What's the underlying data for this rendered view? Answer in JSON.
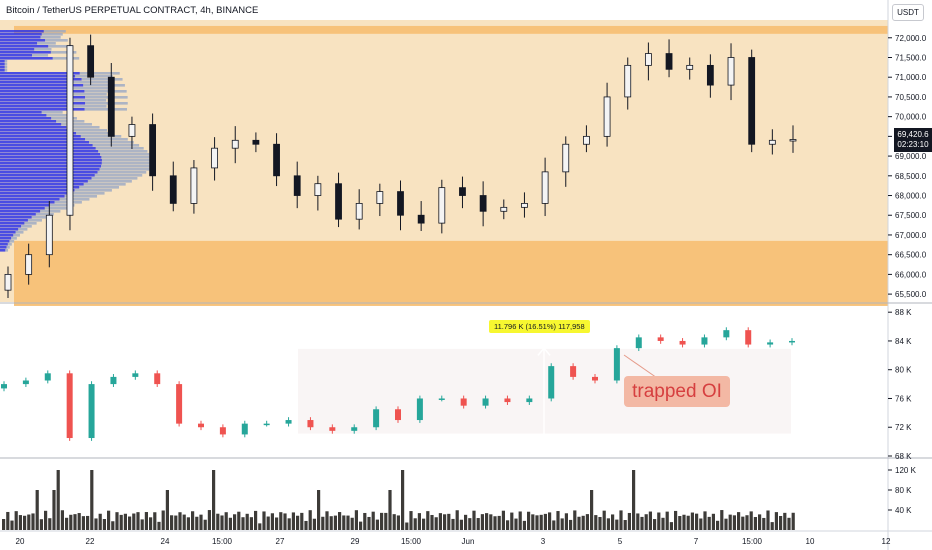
{
  "header": {
    "title": "Bitcoin / TetherUS PERPETUAL CONTRACT, 4h, BINANCE",
    "currency": "USDT"
  },
  "price_panel": {
    "y_ticks": [
      "72,000.0",
      "71,500.0",
      "71,000.0",
      "70,500.0",
      "70,000.0",
      "69,500.0",
      "69,000.0",
      "68,500.0",
      "68,000.0",
      "67,500.0",
      "67,000.0",
      "66,500.0",
      "66,000.0",
      "65,500.0"
    ],
    "last_price": "69,420.6",
    "countdown": "02:23:10",
    "zone_colors": {
      "resistance": "#f7c27a",
      "support": "#f7c27a",
      "background": "#f8e3c1"
    }
  },
  "oi_panel": {
    "y_ticks": [
      "88 K",
      "84 K",
      "80 K",
      "76 K",
      "72 K",
      "68 K"
    ],
    "measure_label": "11.796 K (16.51%) 117,958",
    "annotation": "trapped OI",
    "up_color": "#26a69a",
    "down_color": "#ef5350"
  },
  "volume_panel": {
    "y_ticks": [
      "120 K",
      "80 K",
      "40 K"
    ],
    "bar_color": "#3d3b38"
  },
  "x_axis": {
    "labels": [
      "20",
      "22",
      "24",
      "15:00",
      "27",
      "29",
      "15:00",
      "Jun",
      "3",
      "5",
      "7",
      "15:00",
      "10",
      "12"
    ]
  },
  "chart_data": [
    {
      "type": "candlestick",
      "panel": "price",
      "ylim": [
        65300,
        72400
      ],
      "zones": [
        {
          "name": "resistance",
          "from": 72100,
          "to": 72300
        },
        {
          "name": "support",
          "from": 65200,
          "to": 66850
        }
      ],
      "volume_profile": "left side, blue/grey histogram",
      "close_sample": [
        66000,
        66500,
        67500,
        71800,
        71000,
        69500,
        69800,
        68500,
        67800,
        68700,
        69200,
        69400,
        69300,
        68500,
        68000,
        68300,
        67400,
        67800,
        68100,
        67500,
        67300,
        68200,
        68000,
        67600,
        67700,
        67800,
        68600,
        69300,
        69500,
        70500,
        71300,
        71600,
        71200,
        71300,
        70800,
        71500,
        69300,
        69400,
        69420
      ]
    },
    {
      "type": "candlestick",
      "panel": "open_interest",
      "ylim": [
        68000,
        89000
      ],
      "close_sample": [
        78000,
        78500,
        79500,
        70500,
        78000,
        79000,
        79500,
        78000,
        72500,
        72000,
        71000,
        72500,
        72500,
        73000,
        72000,
        71500,
        72000,
        74500,
        73000,
        76000,
        76000,
        75000,
        76000,
        75500,
        76000,
        80500,
        79000,
        78500,
        83000,
        84500,
        84000,
        83500,
        84500,
        85500,
        83500,
        83800,
        84000
      ]
    },
    {
      "type": "bar",
      "panel": "volume",
      "ylim": [
        0,
        140000
      ]
    }
  ]
}
